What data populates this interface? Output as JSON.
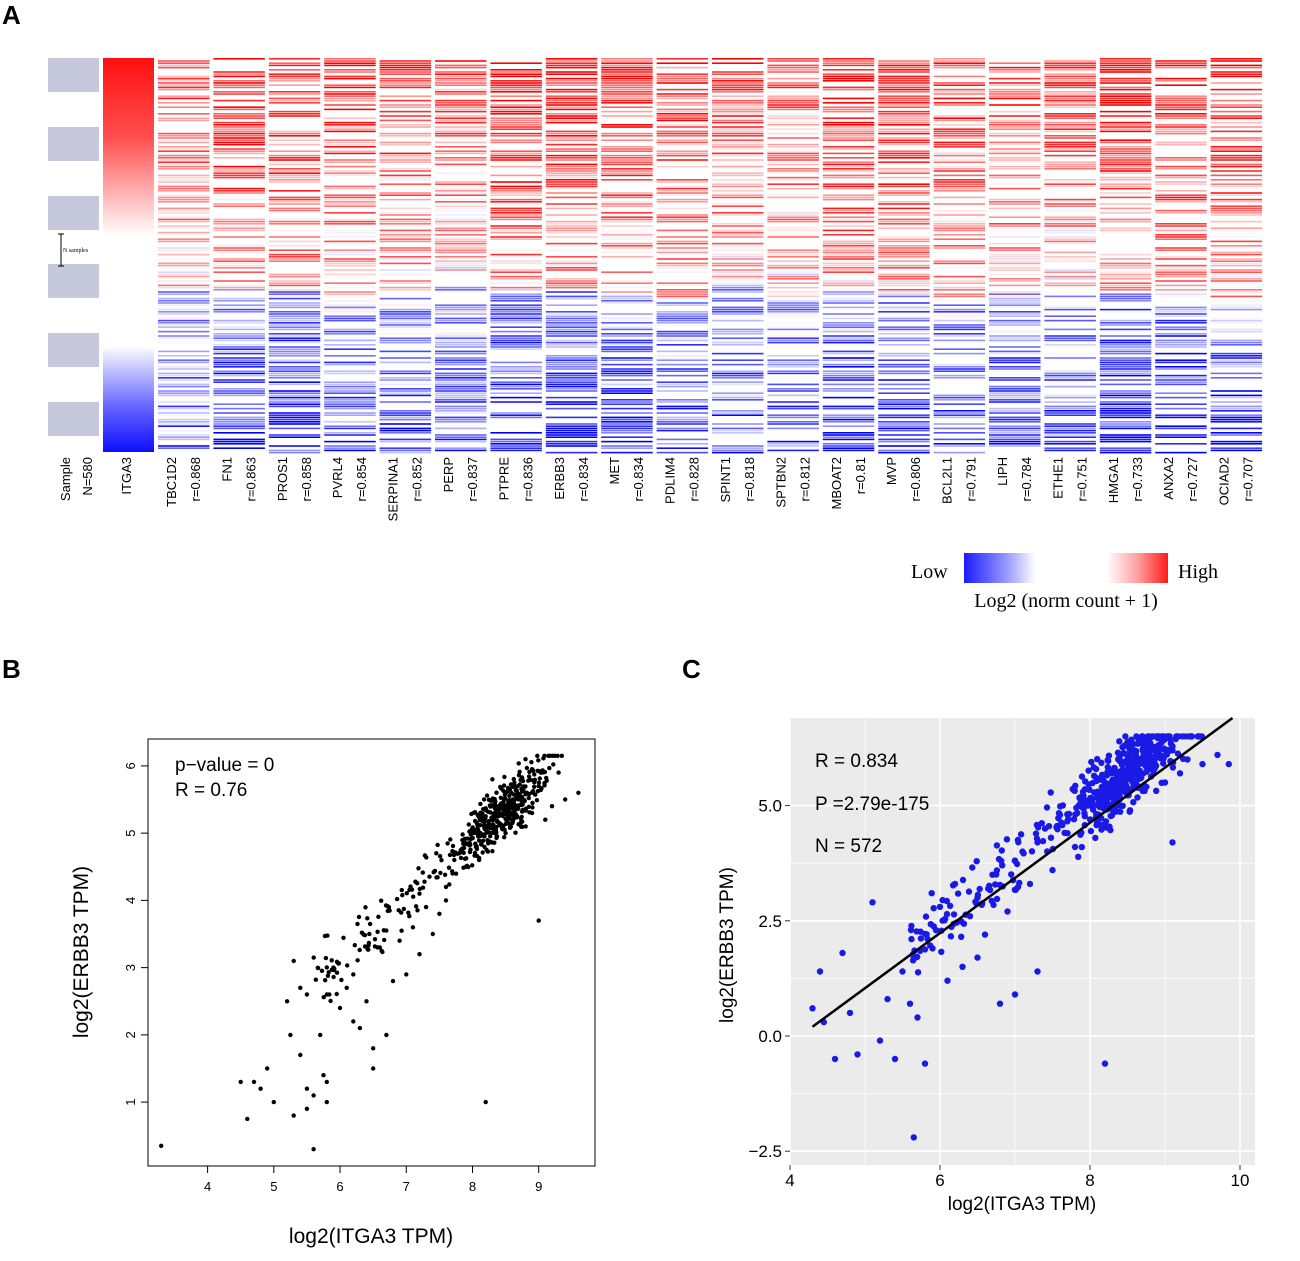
{
  "panels": {
    "a": "A",
    "b": "B",
    "c": "C"
  },
  "heatmap": {
    "sample_label": "Sample",
    "sample_n": "N=580",
    "sample_ann": "N samples",
    "target": "ITGA3",
    "genes": [
      {
        "name": "TBC1D2",
        "r": "r=0.868"
      },
      {
        "name": "FN1",
        "r": "r=0.863"
      },
      {
        "name": "PROS1",
        "r": "r=0.858"
      },
      {
        "name": "PVRL4",
        "r": "r=0.854"
      },
      {
        "name": "SERPINA1",
        "r": "r=0.852"
      },
      {
        "name": "PERP",
        "r": "r=0.837"
      },
      {
        "name": "PTPRE",
        "r": "r=0.836"
      },
      {
        "name": "ERBB3",
        "r": "r=0.834"
      },
      {
        "name": "MET",
        "r": "r=0.834"
      },
      {
        "name": "PDLIM4",
        "r": "r=0.828"
      },
      {
        "name": "SPINT1",
        "r": "r=0.818"
      },
      {
        "name": "SPTBN2",
        "r": "r=0.812"
      },
      {
        "name": "MBOAT2",
        "r": "r=0.81"
      },
      {
        "name": "MVP",
        "r": "r=0.806"
      },
      {
        "name": "BCL2L1",
        "r": "r=0.791"
      },
      {
        "name": "LIPH",
        "r": "r=0.784"
      },
      {
        "name": "ETHE1",
        "r": "r=0.751"
      },
      {
        "name": "HMGA1",
        "r": "r=0.733"
      },
      {
        "name": "ANXA2",
        "r": "r=0.727"
      },
      {
        "name": "OCIAD2",
        "r": "r=0.707"
      }
    ],
    "legend": {
      "low": "Low",
      "high": "High",
      "title": "Log2 (norm count + 1)",
      "low_color": "#1a1aff",
      "mid_color": "#ffffff",
      "high_color": "#ff1a1a"
    }
  },
  "chart_data": [
    {
      "panel": "B",
      "type": "scatter",
      "title": "",
      "xlabel": "log2(ITGA3 TPM)",
      "ylabel": "log2(ERBB3 TPM)",
      "xlim": [
        3.1,
        9.85
      ],
      "ylim": [
        0.05,
        6.4
      ],
      "xticks": [
        4,
        5,
        6,
        7,
        8,
        9
      ],
      "yticks": [
        1,
        2,
        3,
        4,
        5,
        6
      ],
      "annotations": [
        "p−value = 0",
        "R = 0.76"
      ],
      "point_color": "#000000",
      "n_points": 572,
      "x": [
        3.3,
        4.5,
        4.6,
        4.7,
        4.8,
        4.9,
        5.0,
        5.2,
        5.3,
        5.3,
        5.4,
        5.5,
        5.5,
        5.6,
        5.6,
        5.7,
        5.75,
        5.8,
        5.8,
        5.9,
        6.0,
        6.1,
        6.2,
        6.3,
        6.4,
        6.5,
        6.6,
        6.7,
        6.8,
        6.9,
        7.0,
        7.1,
        7.2,
        7.3,
        7.4,
        7.5,
        7.6,
        7.7,
        7.8,
        7.9,
        8.0,
        8.1,
        8.2,
        8.3,
        8.4,
        8.5,
        8.6,
        8.7,
        8.8,
        8.9,
        9.0,
        9.1,
        9.2,
        9.3,
        9.4,
        9.6,
        8.2,
        9.0,
        5.25,
        5.8,
        5.5,
        5.4,
        6.2,
        6.5,
        7.2,
        7.6,
        8.3,
        8.8
      ],
      "y": [
        0.35,
        1.3,
        0.75,
        1.3,
        1.2,
        1.5,
        1.0,
        2.5,
        0.8,
        3.1,
        1.7,
        1.2,
        2.6,
        1.1,
        0.3,
        2.0,
        1.4,
        1.0,
        2.6,
        3.0,
        2.4,
        2.7,
        2.2,
        2.1,
        2.5,
        1.8,
        3.3,
        2.0,
        2.8,
        3.4,
        2.9,
        3.6,
        3.2,
        3.9,
        3.5,
        3.8,
        4.2,
        4.4,
        4.7,
        4.5,
        5.0,
        4.6,
        5.1,
        5.2,
        5.3,
        5.0,
        5.4,
        5.5,
        5.6,
        5.3,
        5.7,
        5.2,
        5.4,
        5.9,
        5.5,
        5.6,
        1.0,
        3.7,
        2.0,
        1.3,
        0.9,
        2.7,
        2.9,
        1.5,
        4.1,
        4.0,
        5.8,
        6.1
      ]
    },
    {
      "panel": "C",
      "type": "scatter",
      "title": "",
      "xlabel": "log2(ITGA3 TPM)",
      "ylabel": "log2(ERBB3 TPM)",
      "xlim": [
        4.0,
        10.2
      ],
      "ylim": [
        -2.8,
        6.9
      ],
      "xticks": [
        4,
        6,
        8,
        10
      ],
      "yticks": [
        -2.5,
        0.0,
        2.5,
        5.0
      ],
      "ytick_labels": [
        "−2.5",
        "0.0",
        "2.5",
        "5.0"
      ],
      "annotations": [
        "R = 0.834",
        "P =2.79e-175",
        "N = 572"
      ],
      "fit_line": {
        "x": [
          4.3,
          9.9
        ],
        "y": [
          0.2,
          6.9
        ]
      },
      "point_color": "#1a1ae6",
      "background": "#ebebeb",
      "n_points": 572,
      "x": [
        4.3,
        4.4,
        4.45,
        4.6,
        4.7,
        4.8,
        4.9,
        5.1,
        5.2,
        5.3,
        5.4,
        5.5,
        5.6,
        5.65,
        5.7,
        5.8,
        5.9,
        6.0,
        6.1,
        6.2,
        6.3,
        6.4,
        6.5,
        6.6,
        6.7,
        6.8,
        6.9,
        7.0,
        7.1,
        7.2,
        7.3,
        7.4,
        7.5,
        7.6,
        7.7,
        7.8,
        7.9,
        8.0,
        8.1,
        8.2,
        8.3,
        8.4,
        8.5,
        8.6,
        8.7,
        8.8,
        8.9,
        9.0,
        9.1,
        9.2,
        9.3,
        9.5,
        9.7,
        9.85,
        8.2,
        9.1,
        6.5,
        7.0,
        7.3
      ],
      "y": [
        0.6,
        1.4,
        0.3,
        -0.5,
        1.8,
        0.5,
        -0.4,
        2.9,
        -0.1,
        0.8,
        -0.5,
        1.4,
        0.7,
        -2.2,
        0.4,
        -0.6,
        1.9,
        2.8,
        1.2,
        3.3,
        1.5,
        2.6,
        3.0,
        2.2,
        3.5,
        0.7,
        2.7,
        3.8,
        4.0,
        3.3,
        4.2,
        4.5,
        3.6,
        4.8,
        4.4,
        4.1,
        5.0,
        4.7,
        5.3,
        5.1,
        5.5,
        5.0,
        5.6,
        5.8,
        5.4,
        5.9,
        6.1,
        5.5,
        6.2,
        5.7,
        6.0,
        5.9,
        6.1,
        5.9,
        -0.6,
        4.2,
        1.7,
        0.9,
        1.4
      ]
    }
  ]
}
